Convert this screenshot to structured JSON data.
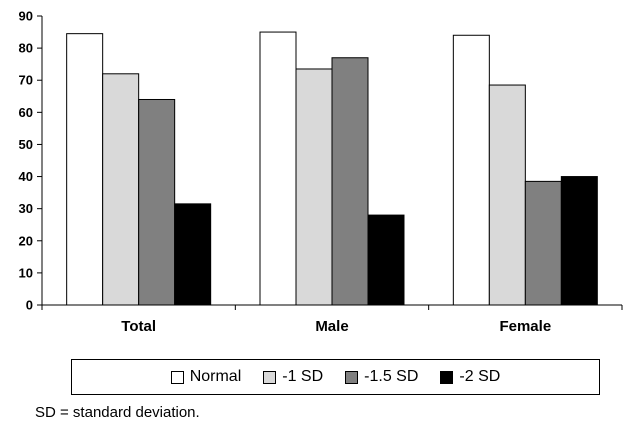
{
  "chart_data": {
    "type": "bar",
    "categories": [
      "Total",
      "Male",
      "Female"
    ],
    "series": [
      {
        "name": "Normal",
        "values": [
          84.5,
          85,
          84
        ],
        "color": "#ffffff"
      },
      {
        "name": "-1 SD",
        "values": [
          72,
          73.5,
          68.5
        ],
        "color": "#d9d9d9"
      },
      {
        "name": "-1.5 SD",
        "values": [
          64,
          77,
          38.5
        ],
        "color": "#808080"
      },
      {
        "name": "-2 SD",
        "values": [
          31.5,
          28,
          40
        ],
        "color": "#000000"
      }
    ],
    "ylim": [
      0,
      90
    ],
    "yticks": [
      0,
      10,
      20,
      30,
      40,
      50,
      60,
      70,
      80,
      90
    ],
    "grid": false,
    "legend_position": "bottom",
    "footnote": "SD = standard deviation."
  }
}
